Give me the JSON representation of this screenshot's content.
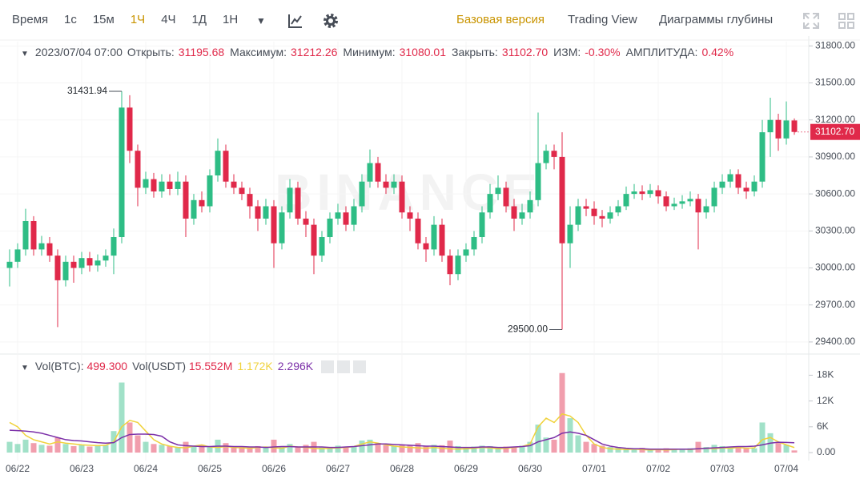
{
  "toolbar": {
    "time": "Время",
    "intervals": [
      "1с",
      "15м",
      "1Ч",
      "4Ч",
      "1Д",
      "1Н"
    ],
    "active": "1Ч",
    "views": [
      "Базовая версия",
      "Trading View",
      "Диаграммы глубины"
    ]
  },
  "chart_data": {
    "type": "candlestick",
    "watermark": "BINANCE",
    "info": {
      "date": "2023/07/04 07:00",
      "fields": [
        {
          "name": "Открыть:",
          "value": "31195.68"
        },
        {
          "name": "Максимум:",
          "value": "31212.26"
        },
        {
          "name": "Минимум:",
          "value": "31080.01"
        },
        {
          "name": "Закрыть:",
          "value": "31102.70"
        },
        {
          "name": "ИЗМ:",
          "value": "-0.30%"
        },
        {
          "name": "АМПЛИТУДА:",
          "value": "0.42%"
        }
      ]
    },
    "vol_info": {
      "btc_name": "Vol(BTC):",
      "btc_value": "499.300",
      "usdt_name": "Vol(USDT)",
      "usdt_value": "15.552M"
    },
    "extreme_labels": {
      "high": "31431.94",
      "low": "29500.00"
    },
    "last_price_label": "31102.70",
    "up_color": "#2ebd85",
    "down_color": "#e0294a",
    "categories": [
      null,
      "06/22",
      null,
      null,
      null,
      null,
      null,
      null,
      null,
      "06/23",
      null,
      null,
      null,
      null,
      null,
      null,
      null,
      "06/24",
      null,
      null,
      null,
      null,
      null,
      null,
      null,
      "06/25",
      null,
      null,
      null,
      null,
      null,
      null,
      null,
      "06/26",
      null,
      null,
      null,
      null,
      null,
      null,
      null,
      "06/27",
      null,
      null,
      null,
      null,
      null,
      null,
      null,
      "06/28",
      null,
      null,
      null,
      null,
      null,
      null,
      null,
      "06/29",
      null,
      null,
      null,
      null,
      null,
      null,
      null,
      "06/30",
      null,
      null,
      null,
      null,
      null,
      null,
      null,
      "07/01",
      null,
      null,
      null,
      null,
      null,
      null,
      null,
      "07/02",
      null,
      null,
      null,
      null,
      null,
      null,
      null,
      "07/03",
      null,
      null,
      null,
      null,
      null,
      null,
      null,
      "07/04",
      null
    ],
    "open": [
      30000,
      30050,
      30150,
      30380,
      30150,
      30200,
      30100,
      29900,
      30050,
      30000,
      30080,
      30020,
      30060,
      30100,
      30250,
      31300,
      30950,
      30650,
      30720,
      30620,
      30700,
      30640,
      30700,
      30400,
      30550,
      30500,
      30750,
      30950,
      30700,
      30650,
      30600,
      30500,
      30400,
      30500,
      30200,
      30450,
      30650,
      30400,
      30350,
      30100,
      30250,
      30400,
      30450,
      30350,
      30500,
      30700,
      30850,
      30700,
      30650,
      30700,
      30450,
      30400,
      30200,
      30150,
      30350,
      30100,
      29950,
      30100,
      30150,
      30250,
      30450,
      30600,
      30650,
      30500,
      30400,
      30450,
      30550,
      30850,
      30950,
      30900,
      30200,
      30350,
      30500,
      30480,
      30420,
      30400,
      30450,
      30500,
      30600,
      30620,
      30600,
      30630,
      30580,
      30500,
      30520,
      30540,
      30560,
      30450,
      30500,
      30650,
      30700,
      30760,
      30650,
      30620,
      30700,
      31100,
      31200,
      31050,
      31195.68
    ],
    "high": [
      30150,
      30200,
      30480,
      30420,
      30260,
      30250,
      30150,
      30100,
      30100,
      30130,
      30130,
      30110,
      30150,
      30320,
      31431.94,
      31400,
      31000,
      30780,
      30770,
      30760,
      30760,
      30780,
      30750,
      30600,
      30620,
      30800,
      31050,
      31000,
      30760,
      30700,
      30650,
      30550,
      30560,
      30550,
      30500,
      30720,
      30700,
      30460,
      30400,
      30300,
      30450,
      30520,
      30500,
      30560,
      30760,
      30960,
      30900,
      30760,
      30760,
      30750,
      30500,
      30450,
      30250,
      30420,
      30400,
      30150,
      30150,
      30200,
      30300,
      30500,
      30680,
      30750,
      30700,
      30560,
      30520,
      30620,
      31260,
      31000,
      31000,
      31100,
      30500,
      30560,
      30560,
      30540,
      30470,
      30500,
      30550,
      30660,
      30680,
      30670,
      30680,
      30670,
      30620,
      30570,
      30590,
      30620,
      30600,
      30560,
      30700,
      30760,
      30800,
      30800,
      30700,
      30750,
      31200,
      31380,
      31250,
      31350,
      31212.26
    ],
    "low": [
      29850,
      30000,
      30100,
      30100,
      30100,
      30050,
      29520,
      29850,
      29880,
      29950,
      29970,
      29970,
      30010,
      29950,
      30200,
      30850,
      30500,
      30600,
      30570,
      30570,
      30590,
      30590,
      30250,
      30350,
      30450,
      30450,
      30700,
      30650,
      30600,
      30550,
      30400,
      30300,
      30350,
      30000,
      30150,
      30400,
      30350,
      30250,
      29950,
      30050,
      30200,
      30350,
      30300,
      30300,
      30450,
      30650,
      30650,
      30600,
      30600,
      30400,
      30300,
      30150,
      30050,
      30100,
      30050,
      29860,
      29900,
      30050,
      30100,
      30200,
      30400,
      30550,
      30450,
      30300,
      30350,
      30400,
      30500,
      30800,
      30800,
      29500,
      30000,
      30300,
      30420,
      30350,
      30330,
      30360,
      30420,
      30470,
      30560,
      30550,
      30570,
      30520,
      30460,
      30470,
      30480,
      30500,
      30150,
      30400,
      30450,
      30600,
      30650,
      30600,
      30560,
      30580,
      30650,
      30900,
      30950,
      31000,
      31080.01
    ],
    "close": [
      30050,
      30150,
      30380,
      30150,
      30200,
      30100,
      29900,
      30050,
      30000,
      30080,
      30020,
      30060,
      30100,
      30250,
      31300,
      30950,
      30650,
      30720,
      30620,
      30700,
      30640,
      30700,
      30400,
      30550,
      30500,
      30750,
      30950,
      30700,
      30650,
      30600,
      30500,
      30400,
      30500,
      30200,
      30450,
      30650,
      30400,
      30350,
      30100,
      30250,
      30400,
      30450,
      30350,
      30500,
      30700,
      30850,
      30700,
      30650,
      30700,
      30450,
      30400,
      30200,
      30150,
      30350,
      30100,
      29950,
      30100,
      30150,
      30250,
      30450,
      30600,
      30650,
      30500,
      30400,
      30450,
      30550,
      30850,
      30950,
      30900,
      30200,
      30350,
      30500,
      30480,
      30420,
      30400,
      30450,
      30500,
      30600,
      30620,
      30600,
      30630,
      30580,
      30500,
      30520,
      30540,
      30560,
      30450,
      30500,
      30650,
      30700,
      30760,
      30650,
      30620,
      30700,
      31100,
      31200,
      31050,
      31195.68,
      31102.7
    ],
    "ylim": [
      29315,
      31880
    ],
    "yticks": [
      {
        "value": 29400,
        "label": "29400.00"
      },
      {
        "value": 29700,
        "label": "29700.00"
      },
      {
        "value": 30000,
        "label": "30000.00"
      },
      {
        "value": 30300,
        "label": "30300.00"
      },
      {
        "value": 30600,
        "label": "30600.00"
      },
      {
        "value": 30900,
        "label": "30900.00"
      },
      {
        "value": 31200,
        "label": "31200.00"
      },
      {
        "value": 31500,
        "label": "31500.00"
      },
      {
        "value": 31800,
        "label": "31800.00"
      }
    ],
    "volume": [
      2500,
      2000,
      3000,
      2200,
      1800,
      1600,
      3500,
      2000,
      1500,
      1800,
      1400,
      1600,
      1700,
      5000,
      16300,
      7000,
      4000,
      2500,
      2000,
      1800,
      1500,
      1200,
      2500,
      1500,
      1800,
      1300,
      3000,
      2200,
      1500,
      1300,
      1200,
      1500,
      1300,
      3000,
      1500,
      2000,
      1400,
      1800,
      2500,
      1300,
      1200,
      1600,
      1400,
      1500,
      2800,
      3000,
      2200,
      1700,
      1500,
      1900,
      1600,
      2200,
      1500,
      1800,
      1700,
      2800,
      1500,
      1300,
      1400,
      1600,
      1500,
      1200,
      1400,
      1300,
      1600,
      2500,
      6500,
      3500,
      3000,
      18500,
      8000,
      4000,
      2500,
      2000,
      1600,
      1300,
      1200,
      1000,
      900,
      1100,
      800,
      900,
      1000,
      800,
      900,
      1000,
      2500,
      1300,
      1800,
      1500,
      1200,
      1400,
      1100,
      1000,
      7000,
      4500,
      2500,
      1800,
      499.3
    ],
    "vol_series": [
      {
        "color": "#f0d23c",
        "legend_label": "1.172K",
        "values": [
          7000,
          6000,
          4000,
          3000,
          2500,
          2000,
          2500,
          2200,
          2000,
          1800,
          1700,
          1600,
          1700,
          2500,
          6000,
          7500,
          7000,
          5000,
          3000,
          2000,
          1500,
          1200,
          1100,
          1500,
          1800,
          1300,
          1200,
          1400,
          1200,
          1100,
          1000,
          1200,
          1300,
          1100,
          1000,
          1500,
          1300,
          1200,
          1000,
          900,
          1000,
          1100,
          1200,
          1400,
          2000,
          2500,
          2200,
          1800,
          1500,
          1300,
          1200,
          1100,
          1000,
          1200,
          1000,
          900,
          800,
          900,
          1000,
          1200,
          1100,
          900,
          1000,
          1200,
          1400,
          2000,
          6000,
          8000,
          7000,
          9000,
          8500,
          7000,
          4000,
          2000,
          1200,
          900,
          800,
          700,
          800,
          700,
          600,
          700,
          600,
          700,
          800,
          700,
          900,
          1000,
          900,
          1100,
          1000,
          1200,
          1000,
          1100,
          3000,
          3500,
          2500,
          1800,
          1172
        ]
      },
      {
        "color": "#7b2fa8",
        "legend_label": "2.296K",
        "values": [
          5200,
          5100,
          5000,
          4800,
          4500,
          4000,
          3500,
          3000,
          2800,
          2700,
          2500,
          2300,
          2200,
          2300,
          3500,
          4200,
          4300,
          4300,
          4200,
          3800,
          2500,
          1800,
          1600,
          1500,
          1400,
          1400,
          1500,
          1500,
          1400,
          1400,
          1300,
          1300,
          1200,
          1300,
          1400,
          1400,
          1300,
          1300,
          1300,
          1300,
          1200,
          1200,
          1300,
          1400,
          1600,
          1800,
          2000,
          2000,
          1900,
          1800,
          1700,
          1600,
          1500,
          1500,
          1400,
          1300,
          1200,
          1200,
          1200,
          1300,
          1300,
          1200,
          1200,
          1300,
          1400,
          1600,
          2500,
          3000,
          3500,
          4500,
          4800,
          4500,
          4000,
          3000,
          2000,
          1500,
          1200,
          1000,
          900,
          900,
          800,
          800,
          800,
          800,
          800,
          800,
          900,
          1000,
          1100,
          1200,
          1300,
          1400,
          1400,
          1500,
          1800,
          2200,
          2400,
          2350,
          2296
        ]
      }
    ],
    "vlim": [
      -1300,
      20500
    ],
    "vticks": [
      {
        "value": 0,
        "label": "0.00"
      },
      {
        "value": 6000,
        "label": "6K"
      },
      {
        "value": 12000,
        "label": "12K"
      },
      {
        "value": 18000,
        "label": "18K"
      }
    ],
    "grid": true
  }
}
